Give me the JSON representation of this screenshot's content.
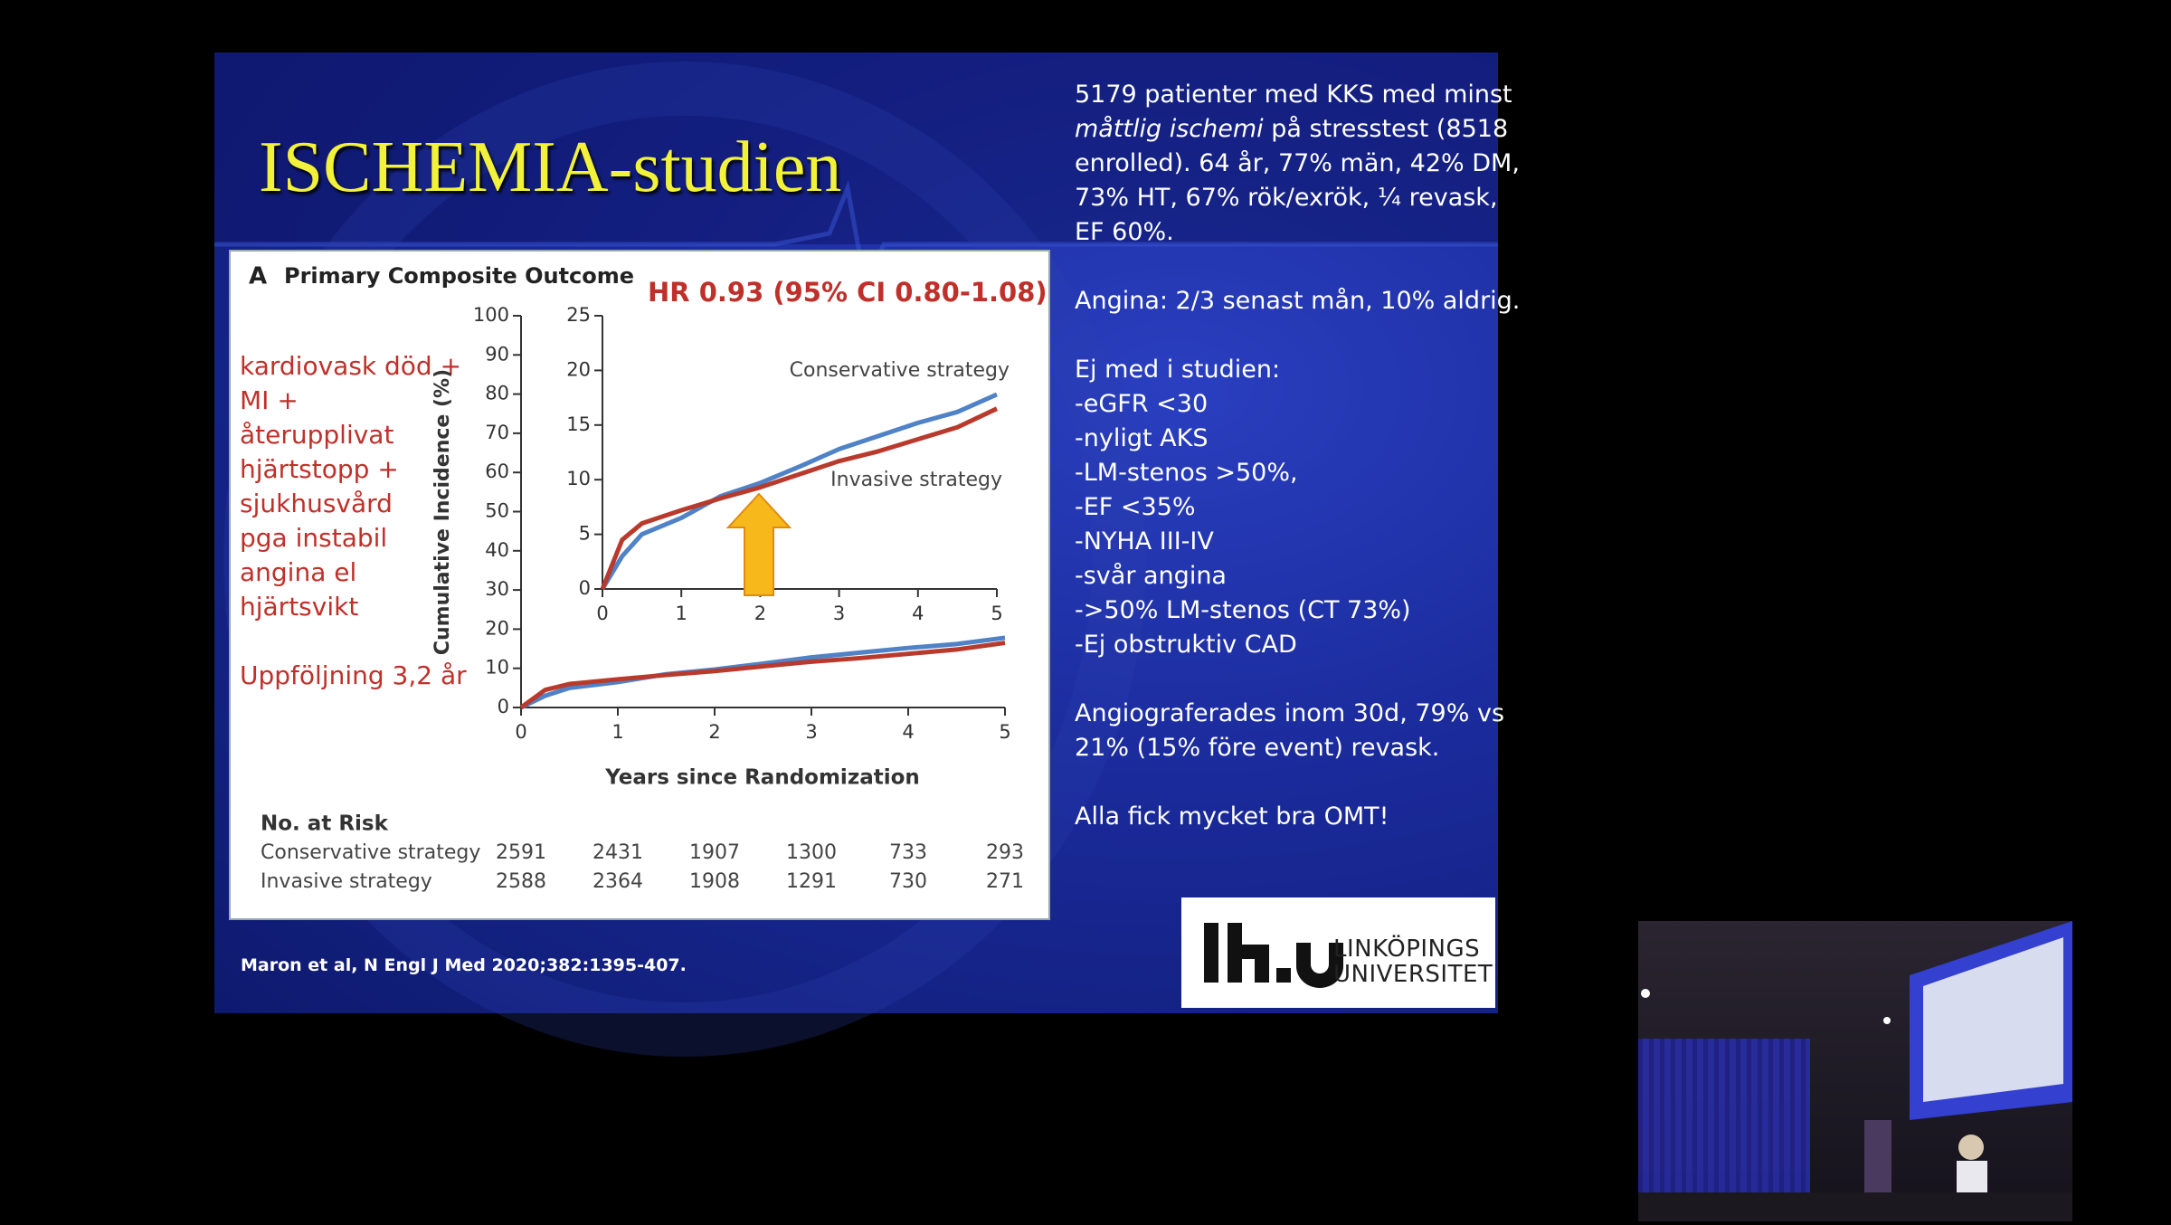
{
  "slide": {
    "title": "ISCHEMIA-studien",
    "left_note": [
      "kardiovask död +",
      "MI +",
      "återupplivat",
      "hjärtstopp +",
      "sjukhusvård",
      "pga instabil",
      "angina el",
      "hjärtsvikt"
    ],
    "follow_up": "Uppföljning 3,2 år",
    "intro": {
      "line1": "5179 patienter med KKS med minst",
      "italic": "måttlig ischemi",
      "line2": "på stresstest (8518",
      "rest": [
        "enrolled). 64 år, 77% män, 42% DM,",
        "73% HT, 67% rök/exrök, ¼ revask,",
        "EF 60%."
      ]
    },
    "angina": "Angina: 2/3 senast mån, 10% aldrig.",
    "excluded": [
      "Ej med i studien:",
      "-eGFR <30",
      "-nyligt AKS",
      "-LM-stenos >50%,",
      "-EF <35%",
      "-NYHA III-IV",
      "-svår angina",
      "->50% LM-stenos (CT 73%)",
      "-Ej obstruktiv CAD"
    ],
    "angio": [
      "Angiograferades inom 30d, 79% vs",
      "21% (15% före event) revask."
    ],
    "omt": "Alla fick mycket bra OMT!",
    "citation": "Maron et al, N Engl J Med 2020;382:1395-407.",
    "logo": [
      "LINKÖPINGS",
      "UNIVERSITET"
    ]
  },
  "chart_data": {
    "type": "line",
    "panel_label": "A",
    "title": "Primary Composite Outcome",
    "annotation": "HR 0.93 (95% CI 0.80-1.08)",
    "ylabel": "Cumulative Incidence (%)",
    "xlabel": "Years since Randomization",
    "x": [
      0,
      0.25,
      0.5,
      1,
      1.5,
      2,
      2.5,
      3,
      3.5,
      4,
      4.5,
      5
    ],
    "series": [
      {
        "name": "Conservative strategy",
        "color": "#4f82c6",
        "values": [
          0,
          3,
          5,
          6.5,
          8.5,
          9.7,
          11.2,
          12.8,
          14,
          15.2,
          16.2,
          17.8
        ]
      },
      {
        "name": "Invasive strategy",
        "color": "#b93a2c",
        "values": [
          0,
          4.5,
          6,
          7.2,
          8.3,
          9.3,
          10.5,
          11.7,
          12.6,
          13.7,
          14.8,
          16.5
        ]
      }
    ],
    "xlim": [
      0,
      5
    ],
    "xticks": [
      0,
      1,
      2,
      3,
      4,
      5
    ],
    "ylim": [
      0,
      100
    ],
    "yticks": [
      0,
      10,
      20,
      30,
      40,
      50,
      60,
      70,
      80,
      90,
      100
    ],
    "inset": {
      "xlim": [
        0,
        5
      ],
      "xticks": [
        0,
        1,
        2,
        3,
        4,
        5
      ],
      "ylim": [
        0,
        25
      ],
      "yticks": [
        0,
        5,
        10,
        15,
        20,
        25
      ]
    },
    "risk_table": {
      "title": "No. at Risk",
      "rows": [
        {
          "label": "Conservative strategy",
          "values": [
            2591,
            2431,
            1907,
            1300,
            733,
            293
          ]
        },
        {
          "label": "Invasive strategy",
          "values": [
            2588,
            2364,
            1908,
            1291,
            730,
            271
          ]
        }
      ]
    }
  }
}
